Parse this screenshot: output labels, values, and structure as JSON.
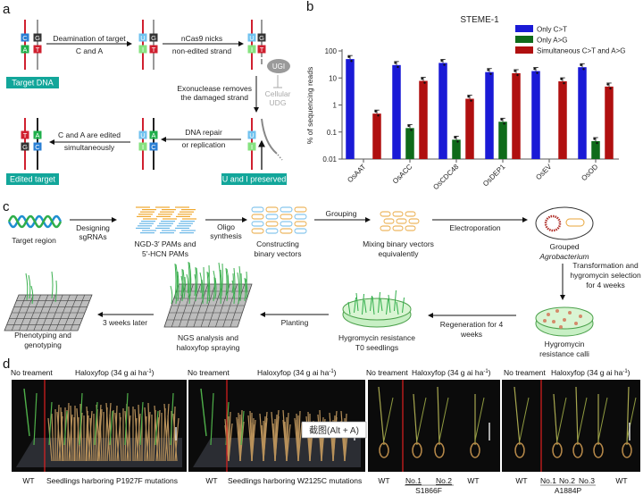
{
  "panel_labels": {
    "a": "a",
    "b": "b",
    "c": "c",
    "d": "d"
  },
  "panel_a": {
    "step1": [
      "Deamination of target",
      "C and A"
    ],
    "step2": [
      "nCas9 nicks",
      "non-edited strand"
    ],
    "step3": [
      "Exonuclease removes",
      "the damaged strand"
    ],
    "step4": [
      "DNA repair",
      "or replication"
    ],
    "step5": [
      "C and A are edited",
      "simultaneously"
    ],
    "ugi": "UGI",
    "udg": [
      "Cellular",
      "UDG"
    ],
    "target_dna": "Target DNA",
    "edited_target": "Edited target",
    "u_i_preserved": "U and I preserved",
    "strand_pairs": [
      {
        "left": [
          "C",
          "A"
        ],
        "right": [
          "G",
          "T"
        ]
      },
      {
        "left": [
          "U",
          "I"
        ],
        "right": [
          "G",
          "T"
        ]
      },
      {
        "left": [
          "U",
          "I"
        ],
        "right": [
          "G",
          "T"
        ]
      },
      {
        "left": [
          "T",
          "G"
        ],
        "right": [
          "A",
          "C"
        ]
      },
      {
        "left": [
          "U",
          "I"
        ],
        "right": [
          "A",
          "C"
        ]
      },
      {
        "left": [
          "U",
          "I"
        ],
        "right": []
      }
    ],
    "base_colors": {
      "C": "#2a7fd4",
      "A": "#1faf4b",
      "G": "#333333",
      "T": "#d0202f",
      "U": "#70c2ef",
      "I": "#86e27f"
    },
    "label_color": "#12a69a"
  },
  "chart_data": {
    "type": "bar",
    "title": "STEME-1",
    "xlabel": "",
    "ylabel": "% of sequencing reads",
    "yscale": "log",
    "ylim": [
      0.01,
      100
    ],
    "yticks": [
      "100",
      "10",
      "1",
      "0.1",
      "0.01"
    ],
    "categories": [
      "OsAAT",
      "OsACC",
      "OsCDC48",
      "OsDEP1",
      "OsEV",
      "OsOD"
    ],
    "series": [
      {
        "name": "Only C>T",
        "color": "#1a1ad6",
        "values": [
          50,
          30,
          36,
          16.5,
          18,
          25
        ]
      },
      {
        "name": "Only A>G",
        "color": "#0f6b1a",
        "values": [
          null,
          0.14,
          0.052,
          0.24,
          null,
          0.046
        ]
      },
      {
        "name": "Simultaneous C>T and A>G",
        "color": "#b01010",
        "values": [
          0.48,
          7.8,
          1.7,
          15,
          7.5,
          4.8
        ]
      }
    ],
    "legend": "top-right",
    "grid": false
  },
  "panel_c": {
    "target_region": "Target region",
    "designing": [
      "Designing",
      "sgRNAs"
    ],
    "pams": [
      "NGD-3′ PAMs and",
      "5′-HCN PAMs"
    ],
    "oligo": [
      "Oligo",
      "synthesis"
    ],
    "constructing": [
      "Constructing",
      "binary vectors"
    ],
    "grouping": "Grouping",
    "mixing": [
      "Mixing binary vectors",
      "equivalently"
    ],
    "electroporation": "Electroporation",
    "grouped": "Grouped",
    "agrobacterium": "Agrobacterium",
    "transformation": [
      "Transformation and",
      "hygromycin selection",
      "for 4 weeks"
    ],
    "calli": [
      "Hygromycin",
      "resistance calli"
    ],
    "regeneration": [
      "Regeneration for 4",
      "weeks"
    ],
    "t0": [
      "Hygromycin resistance",
      "T0 seedlings"
    ],
    "planting": "Planting",
    "ngs": [
      "NGS analysis and",
      "haloxyfop spraying"
    ],
    "three_weeks": "3 weeks later",
    "phenotyping": [
      "Phenotyping and",
      "genotyping"
    ]
  },
  "panel_d": {
    "no_treatment": "No treament",
    "haloxyfop": "Haloxyfop (34 g ai ha",
    "haloxyfop_sup": "-1",
    "haloxyfop_close": ")",
    "wt": "WT",
    "p1927f": "Seedlings harboring P1927F mutations",
    "w2125c": "Seedlings harboring W2125C mutations",
    "no1": "No.1",
    "no2": "No.2",
    "no3": "No.3",
    "s1866f": "S1866F",
    "a1884p": "A1884P"
  },
  "screenshot_tooltip": "截图(Alt + A)"
}
